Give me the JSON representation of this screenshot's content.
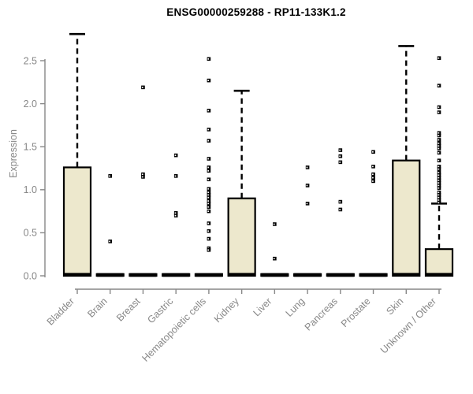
{
  "chart_data": {
    "type": "boxplot",
    "title": "ENSG00000259288 - RP11-133K1.2",
    "xlabel": "",
    "ylabel": "Expression",
    "ylim": [
      0,
      2.85
    ],
    "yticks": [
      0,
      0.5,
      1,
      1.5,
      2,
      2.5
    ],
    "ytick_labels": [
      "0.0",
      "0.5",
      "1.0",
      "1.5",
      "2.0",
      "2.5"
    ],
    "grid": false,
    "legend": null,
    "colors": {
      "box_fill": "#ede8cd",
      "box_border": "#000000",
      "median": "#000000",
      "whisker": "#000000",
      "outlier": "#000000",
      "axis": "#878787",
      "tick_label": "#878787",
      "title": "#000000",
      "background": "#ffffff"
    },
    "categories": [
      "Bladder",
      "Brain",
      "Breast",
      "Gastric",
      "Hematopoietic cells",
      "Kidney",
      "Liver",
      "Lung",
      "Pancreas",
      "Prostate",
      "Skin",
      "Unknown / Other"
    ],
    "series": [
      {
        "category": "Bladder",
        "q1": 0,
        "median": 0.012,
        "q3": 1.26,
        "whisker_low": 0,
        "whisker_high": 2.81,
        "outliers": []
      },
      {
        "category": "Brain",
        "q1": 0,
        "median": 0.01,
        "q3": 0.02,
        "whisker_low": 0,
        "whisker_high": 0.02,
        "outliers": [
          1.16,
          0.4
        ]
      },
      {
        "category": "Breast",
        "q1": 0,
        "median": 0.01,
        "q3": 0.02,
        "whisker_low": 0,
        "whisker_high": 0.02,
        "outliers": [
          2.19,
          1.18,
          1.15
        ]
      },
      {
        "category": "Gastric",
        "q1": 0,
        "median": 0.01,
        "q3": 0.02,
        "whisker_low": 0,
        "whisker_high": 0.02,
        "outliers": [
          1.4,
          1.16,
          0.73,
          0.7
        ]
      },
      {
        "category": "Hematopoietic cells",
        "q1": 0,
        "median": 0.01,
        "q3": 0.02,
        "whisker_low": 0,
        "whisker_high": 0.02,
        "outliers": [
          2.52,
          2.27,
          1.92,
          1.7,
          1.57,
          1.36,
          1.26,
          1.22,
          1.12,
          1.01,
          0.97,
          0.94,
          0.91,
          0.87,
          0.84,
          0.8,
          0.75,
          0.61,
          0.52,
          0.43,
          0.32,
          0.3
        ]
      },
      {
        "category": "Kidney",
        "q1": 0,
        "median": 0.012,
        "q3": 0.9,
        "whisker_low": 0,
        "whisker_high": 2.15,
        "outliers": []
      },
      {
        "category": "Liver",
        "q1": 0,
        "median": 0.01,
        "q3": 0.02,
        "whisker_low": 0,
        "whisker_high": 0.02,
        "outliers": [
          0.6,
          0.2
        ]
      },
      {
        "category": "Lung",
        "q1": 0,
        "median": 0.01,
        "q3": 0.02,
        "whisker_low": 0,
        "whisker_high": 0.02,
        "outliers": [
          1.26,
          1.05,
          0.84
        ]
      },
      {
        "category": "Pancreas",
        "q1": 0,
        "median": 0.01,
        "q3": 0.02,
        "whisker_low": 0,
        "whisker_high": 0.02,
        "outliers": [
          1.46,
          1.39,
          1.32,
          0.86,
          0.77
        ]
      },
      {
        "category": "Prostate",
        "q1": 0,
        "median": 0.01,
        "q3": 0.02,
        "whisker_low": 0,
        "whisker_high": 0.02,
        "outliers": [
          1.44,
          1.27,
          1.18,
          1.14,
          1.1
        ]
      },
      {
        "category": "Skin",
        "q1": 0,
        "median": 0.012,
        "q3": 1.34,
        "whisker_low": 0,
        "whisker_high": 2.67,
        "outliers": []
      },
      {
        "category": "Unknown / Other",
        "q1": 0,
        "median": 0.012,
        "q3": 0.31,
        "whisker_low": 0,
        "whisker_high": 0.84,
        "outliers": [
          2.53,
          2.21,
          1.96,
          1.9,
          1.66,
          1.63,
          1.58,
          1.54,
          1.51,
          1.48,
          1.43,
          1.34,
          1.27,
          1.24,
          1.2,
          1.17,
          1.14,
          1.11,
          1.08,
          1.05,
          1.02,
          0.97,
          0.94,
          0.91,
          0.88,
          0.85
        ]
      }
    ]
  }
}
